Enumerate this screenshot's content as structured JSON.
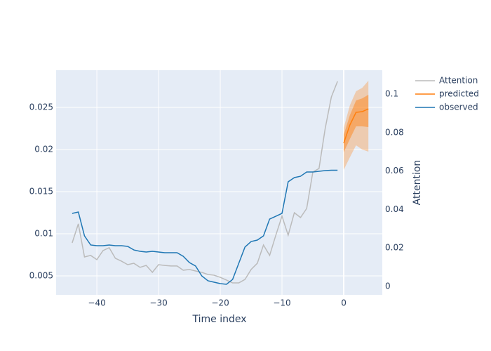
{
  "chart_data": {
    "type": "line",
    "xlabel": "Time index",
    "y2label": "Attention",
    "xlim": [
      -46.6,
      6.25
    ],
    "ylim": [
      0.00275,
      0.02942
    ],
    "y2lim": [
      -0.0044,
      0.1124
    ],
    "xticks": [
      {
        "value": -40,
        "label": "−40"
      },
      {
        "value": -30,
        "label": "−30"
      },
      {
        "value": -20,
        "label": "−20"
      },
      {
        "value": -10,
        "label": "−10"
      },
      0
    ],
    "yticks": [
      0.005,
      0.01,
      0.015,
      0.02,
      0.025
    ],
    "y2ticks": [
      0,
      0.02,
      0.04,
      0.06,
      0.08,
      0.1
    ],
    "grid": true,
    "background": "#e5ecf6",
    "series": [
      {
        "name": "Attention",
        "color": "#bbbbbb",
        "axis": "y2",
        "x": [
          -44,
          -43,
          -42,
          -41,
          -40,
          -39,
          -38,
          -37,
          -36,
          -35,
          -34,
          -33,
          -32,
          -31,
          -30,
          -29,
          -28,
          -27,
          -26,
          -25,
          -24,
          -23,
          -22,
          -21,
          -20,
          -19,
          -18,
          -17,
          -16,
          -15,
          -14,
          -13,
          -12,
          -11,
          -10,
          -9,
          -8,
          -7,
          -6,
          -5,
          -4,
          -3,
          -2,
          -1
        ],
        "values": [
          0.0226,
          0.0325,
          0.0153,
          0.0161,
          0.0139,
          0.0186,
          0.0201,
          0.0146,
          0.0131,
          0.0113,
          0.012,
          0.0099,
          0.0109,
          0.0073,
          0.0113,
          0.0109,
          0.0106,
          0.0106,
          0.0084,
          0.0088,
          0.008,
          0.0073,
          0.0062,
          0.0058,
          0.0047,
          0.0033,
          0.0018,
          0.0018,
          0.0036,
          0.0088,
          0.012,
          0.0215,
          0.0161,
          0.0266,
          0.0365,
          0.0266,
          0.0383,
          0.0358,
          0.0405,
          0.0595,
          0.0613,
          0.0821,
          0.0985,
          0.1066
        ]
      },
      {
        "name": "predicted",
        "color": "#ff7f0e",
        "x": [
          0,
          1,
          2,
          3,
          4
        ],
        "values": [
          0.02075,
          0.02292,
          0.02442,
          0.0245,
          0.02483
        ],
        "intervals": [
          {
            "lower": [
              0.01758,
              0.01908,
              0.0205,
              0.02,
              0.01975
            ],
            "upper": [
              0.02258,
              0.02525,
              0.02692,
              0.02733,
              0.02817
            ],
            "opacity": 0.3
          },
          {
            "lower": [
              0.01967,
              0.02125,
              0.02275,
              0.02275,
              0.02267
            ],
            "upper": [
              0.02175,
              0.02408,
              0.02583,
              0.02608,
              0.0265
            ],
            "opacity": 0.45
          }
        ]
      },
      {
        "name": "observed",
        "color": "#1f77b4",
        "x": [
          -44,
          -43,
          -42,
          -41,
          -40,
          -39,
          -38,
          -37,
          -36,
          -35,
          -34,
          -33,
          -32,
          -31,
          -30,
          -29,
          -28,
          -27,
          -26,
          -25,
          -24,
          -23,
          -22,
          -21,
          -20,
          -19,
          -18,
          -17,
          -16,
          -15,
          -14,
          -13,
          -12,
          -11,
          -10,
          -9,
          -8,
          -7,
          -6,
          -5,
          -4,
          -3,
          -2,
          -1
        ],
        "values": [
          0.01242,
          0.01258,
          0.00975,
          0.00867,
          0.00858,
          0.00858,
          0.00867,
          0.00858,
          0.00858,
          0.0085,
          0.00808,
          0.00792,
          0.00783,
          0.00792,
          0.00783,
          0.00775,
          0.00775,
          0.00775,
          0.00733,
          0.00658,
          0.00617,
          0.005,
          0.00442,
          0.00425,
          0.00408,
          0.004,
          0.00458,
          0.0065,
          0.00842,
          0.00908,
          0.00925,
          0.00975,
          0.01175,
          0.01208,
          0.01242,
          0.01617,
          0.01667,
          0.01683,
          0.01733,
          0.01733,
          0.01742,
          0.0175,
          0.01754,
          0.01754
        ]
      }
    ]
  }
}
